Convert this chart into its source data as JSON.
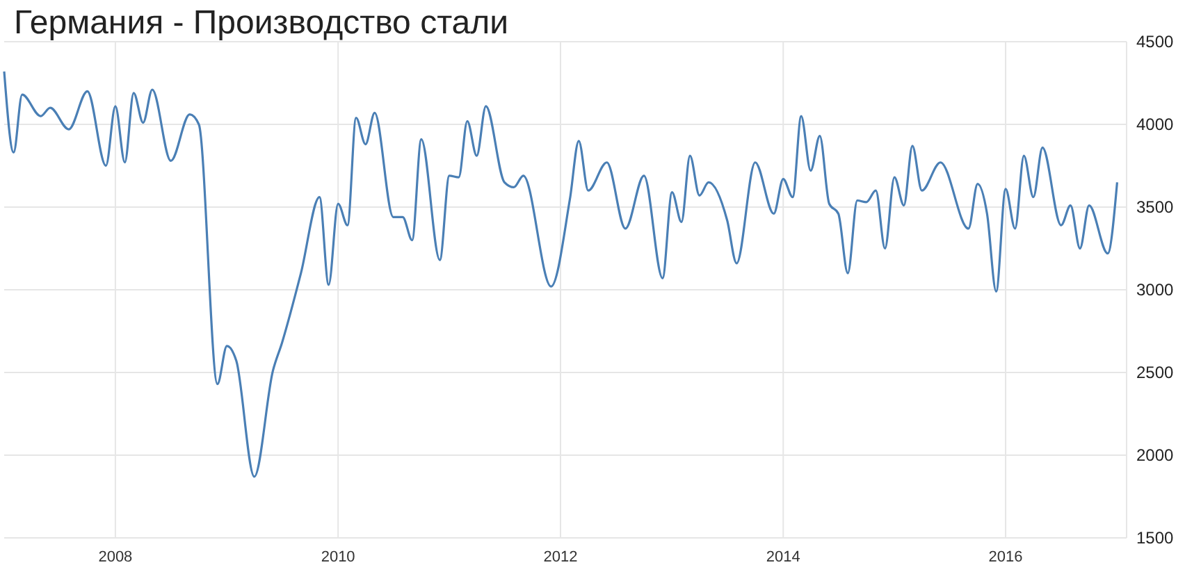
{
  "chart_data": {
    "type": "line",
    "title": "Германия - Производство стали",
    "x": [
      "2007-01",
      "2007-02",
      "2007-03",
      "2007-05",
      "2007-06",
      "2007-08",
      "2007-10",
      "2007-12",
      "2008-01",
      "2008-02",
      "2008-03",
      "2008-04",
      "2008-05",
      "2008-07",
      "2008-09",
      "2008-10",
      "2008-12",
      "2009-01",
      "2009-02",
      "2009-04",
      "2009-06",
      "2009-07",
      "2009-09",
      "2009-11",
      "2009-12",
      "2010-01",
      "2010-02",
      "2010-03",
      "2010-04",
      "2010-05",
      "2010-07",
      "2010-08",
      "2010-09",
      "2010-10",
      "2010-12",
      "2011-01",
      "2011-02",
      "2011-03",
      "2011-04",
      "2011-05",
      "2011-07",
      "2011-08",
      "2011-09",
      "2011-12",
      "2012-02",
      "2012-03",
      "2012-04",
      "2012-06",
      "2012-08",
      "2012-10",
      "2012-12",
      "2013-01",
      "2013-02",
      "2013-03",
      "2013-04",
      "2013-05",
      "2013-07",
      "2013-08",
      "2013-10",
      "2013-12",
      "2014-01",
      "2014-02",
      "2014-03",
      "2014-04",
      "2014-05",
      "2014-06",
      "2014-07",
      "2014-08",
      "2014-09",
      "2014-10",
      "2014-11",
      "2014-12",
      "2015-01",
      "2015-02",
      "2015-03",
      "2015-04",
      "2015-06",
      "2015-09",
      "2015-10",
      "2015-11",
      "2015-12",
      "2016-01",
      "2016-02",
      "2016-03",
      "2016-04",
      "2016-05",
      "2016-07",
      "2016-08",
      "2016-09",
      "2016-10",
      "2016-12",
      "2017-01"
    ],
    "series": [
      {
        "color": "#4a7fb5",
        "values": [
          4320,
          3830,
          4180,
          4050,
          4100,
          3970,
          4200,
          3750,
          4110,
          3770,
          4190,
          4010,
          4210,
          3780,
          4060,
          4000,
          2430,
          2660,
          2570,
          1870,
          2510,
          2680,
          3100,
          3560,
          3030,
          3520,
          3390,
          4040,
          3880,
          4070,
          3440,
          3440,
          3300,
          3910,
          3180,
          3690,
          3680,
          4020,
          3810,
          4110,
          3650,
          3620,
          3690,
          3020,
          3550,
          3900,
          3600,
          3770,
          3370,
          3690,
          3070,
          3590,
          3410,
          3810,
          3570,
          3650,
          3420,
          3160,
          3770,
          3460,
          3670,
          3560,
          4050,
          3720,
          3930,
          3520,
          3460,
          3100,
          3540,
          3530,
          3600,
          3250,
          3680,
          3510,
          3870,
          3600,
          3770,
          3370,
          3640,
          3460,
          2990,
          3610,
          3370,
          3810,
          3560,
          3860,
          3390,
          3510,
          3250,
          3510,
          3220,
          3650
        ]
      }
    ],
    "xlim": [
      "2007-01",
      "2017-02"
    ],
    "xticks": [
      {
        "value": "2008",
        "label": "2008"
      },
      {
        "value": "2010",
        "label": "2010"
      },
      {
        "value": "2012",
        "label": "2012"
      },
      {
        "value": "2014",
        "label": "2014"
      },
      {
        "value": "2016",
        "label": "2016"
      }
    ],
    "ylim": [
      1500,
      4500
    ],
    "yticks": [
      1500,
      2000,
      2500,
      3000,
      3500,
      4000,
      4500
    ],
    "grid": true
  }
}
